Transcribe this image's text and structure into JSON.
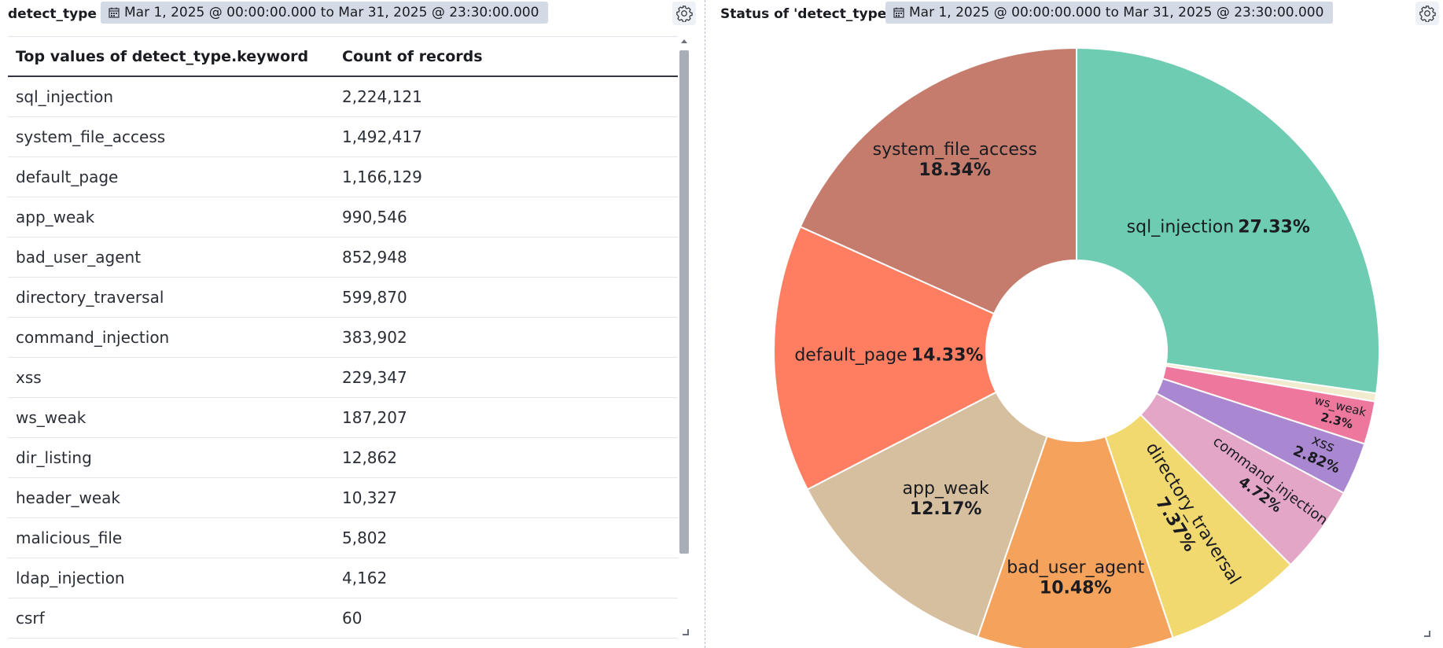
{
  "left_panel": {
    "title": "detect_type",
    "time_range": "Mar 1, 2025 @ 00:00:00.000 to Mar 31, 2025 @ 23:30:00.000",
    "table": {
      "columns": [
        "Top values of detect_type.keyword",
        "Count of records"
      ],
      "rows": [
        [
          "sql_injection",
          "2,224,121"
        ],
        [
          "system_file_access",
          "1,492,417"
        ],
        [
          "default_page",
          "1,166,129"
        ],
        [
          "app_weak",
          "990,546"
        ],
        [
          "bad_user_agent",
          "852,948"
        ],
        [
          "directory_traversal",
          "599,870"
        ],
        [
          "command_injection",
          "383,902"
        ],
        [
          "xss",
          "229,347"
        ],
        [
          "ws_weak",
          "187,207"
        ],
        [
          "dir_listing",
          "12,862"
        ],
        [
          "header_weak",
          "10,327"
        ],
        [
          "malicious_file",
          "5,802"
        ],
        [
          "ldap_injection",
          "4,162"
        ],
        [
          "csrf",
          "60"
        ]
      ]
    }
  },
  "right_panel": {
    "title": "Status of 'detect_type'",
    "time_range": "Mar 1, 2025 @ 00:00:00.000 to Mar 31, 2025 @ 23:30:00.000"
  },
  "icons": {
    "calendar": "calendar-icon",
    "settings": "gear-icon"
  },
  "chart_data": {
    "type": "pie",
    "donut": true,
    "slices": [
      {
        "label": "sql_injection",
        "pct_label": "27.33%",
        "value": 27.33,
        "color": "#6dccb1"
      },
      {
        "label": "",
        "pct_label": "",
        "value": 0.44,
        "color": "#f1eccf"
      },
      {
        "label": "ws_weak",
        "pct_label": "2.3%",
        "value": 2.3,
        "color": "#ee789d"
      },
      {
        "label": "xss",
        "pct_label": "2.82%",
        "value": 2.82,
        "color": "#a987d1"
      },
      {
        "label": "command_injection",
        "pct_label": "4.72%",
        "value": 4.72,
        "color": "#e4a6c7"
      },
      {
        "label": "directory_traversal",
        "pct_label": "7.37%",
        "value": 7.37,
        "color": "#f1d86f"
      },
      {
        "label": "bad_user_agent",
        "pct_label": "10.48%",
        "value": 10.48,
        "color": "#f5a35c"
      },
      {
        "label": "app_weak",
        "pct_label": "12.17%",
        "value": 12.17,
        "color": "#d6bf9f"
      },
      {
        "label": "default_page",
        "pct_label": "14.33%",
        "value": 14.33,
        "color": "#ff7e62"
      },
      {
        "label": "system_file_access",
        "pct_label": "18.34%",
        "value": 18.34,
        "color": "#c57c6d"
      }
    ]
  }
}
